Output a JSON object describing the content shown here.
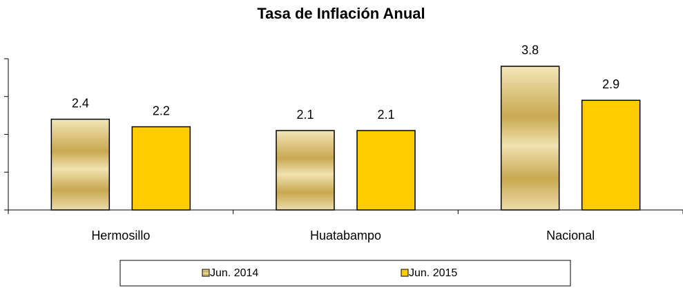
{
  "chart_data": {
    "type": "bar",
    "title": "Tasa de Inflación Anual",
    "categories": [
      "Hermosillo",
      "Huatabampo",
      "Nacional"
    ],
    "series": [
      {
        "name": "Jun. 2014",
        "color": "#c8a850",
        "values": [
          2.4,
          2.1,
          3.8
        ]
      },
      {
        "name": "Jun. 2015",
        "color": "#ffcc00",
        "values": [
          2.2,
          2.1,
          2.9
        ]
      }
    ],
    "ylim": [
      0,
      4
    ],
    "yticks": [
      0,
      1,
      2,
      3,
      4
    ],
    "legend": "bottom"
  }
}
